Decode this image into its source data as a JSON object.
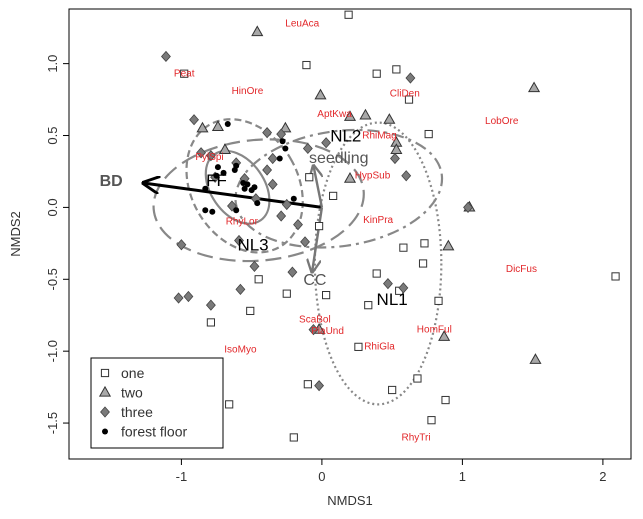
{
  "chart_data": {
    "type": "scatter",
    "xlabel": "NMDS1",
    "ylabel": "NMDS2",
    "xlim": [
      -1.8,
      2.2
    ],
    "ylim": [
      -1.75,
      1.38
    ],
    "x_ticks": [
      -1,
      0,
      1,
      2
    ],
    "x_tick_labels": [
      "-1",
      "0",
      "1",
      "2"
    ],
    "y_ticks": [
      -1.5,
      -1.0,
      -0.5,
      0.0,
      0.5,
      1.0
    ],
    "y_tick_labels": [
      "-1.5",
      "-1.0",
      "-0.5",
      "0.0",
      "0.5",
      "1.0"
    ],
    "grid": false,
    "legend": {
      "placement": "bottom-left",
      "entries": [
        {
          "label": "one",
          "marker": "square-open"
        },
        {
          "label": "two",
          "marker": "triangle-grey"
        },
        {
          "label": "three",
          "marker": "diamond-grey"
        },
        {
          "label": "forest floor",
          "marker": "circle-black"
        }
      ]
    },
    "series": [
      {
        "name": "one",
        "marker": "square-open",
        "points": [
          [
            0.19,
            1.34
          ],
          [
            -0.98,
            0.93
          ],
          [
            -0.11,
            0.99
          ],
          [
            0.53,
            0.96
          ],
          [
            0.39,
            0.93
          ],
          [
            0.62,
            0.75
          ],
          [
            -0.09,
            0.21
          ],
          [
            -0.02,
            -0.13
          ],
          [
            0.03,
            -0.61
          ],
          [
            0.55,
            -0.58
          ],
          [
            0.39,
            -0.46
          ],
          [
            0.33,
            -0.68
          ],
          [
            0.73,
            -0.25
          ],
          [
            0.58,
            -0.28
          ],
          [
            0.72,
            -0.39
          ],
          [
            0.26,
            -0.97
          ],
          [
            0.83,
            -0.65
          ],
          [
            0.5,
            -1.27
          ],
          [
            0.78,
            -1.48
          ],
          [
            0.68,
            -1.19
          ],
          [
            0.88,
            -1.34
          ],
          [
            -0.51,
            -0.72
          ],
          [
            -0.79,
            -0.8
          ],
          [
            -0.66,
            -1.37
          ],
          [
            -0.2,
            -1.6
          ],
          [
            -0.1,
            -1.23
          ],
          [
            -0.45,
            -0.5
          ],
          [
            -0.25,
            -0.6
          ],
          [
            2.09,
            -0.48
          ],
          [
            0.76,
            0.51
          ],
          [
            0.08,
            0.08
          ]
        ]
      },
      {
        "name": "two",
        "marker": "triangle-grey",
        "points": [
          [
            -0.46,
            1.22
          ],
          [
            -0.01,
            0.78
          ],
          [
            0.31,
            0.64
          ],
          [
            0.48,
            0.61
          ],
          [
            0.53,
            0.45
          ],
          [
            0.53,
            0.4
          ],
          [
            -0.74,
            0.56
          ],
          [
            -0.85,
            0.55
          ],
          [
            -0.26,
            0.55
          ],
          [
            1.51,
            0.83
          ],
          [
            0.2,
            0.2
          ],
          [
            0.9,
            -0.27
          ],
          [
            0.87,
            -0.9
          ],
          [
            1.52,
            -1.06
          ],
          [
            -0.02,
            -0.85
          ],
          [
            0.2,
            0.63
          ],
          [
            1.05,
            0.0
          ],
          [
            -0.69,
            0.4
          ]
        ]
      },
      {
        "name": "three",
        "marker": "diamond-grey",
        "points": [
          [
            -1.11,
            1.05
          ],
          [
            -0.91,
            0.61
          ],
          [
            -0.86,
            0.38
          ],
          [
            -0.79,
            0.36
          ],
          [
            -0.61,
            0.31
          ],
          [
            -0.39,
            0.52
          ],
          [
            -0.29,
            0.51
          ],
          [
            -0.1,
            0.41
          ],
          [
            0.03,
            0.45
          ],
          [
            0.63,
            0.9
          ],
          [
            0.52,
            0.34
          ],
          [
            0.6,
            0.22
          ],
          [
            -0.39,
            0.26
          ],
          [
            -0.55,
            0.2
          ],
          [
            -0.35,
            0.16
          ],
          [
            -0.25,
            0.02
          ],
          [
            -0.17,
            -0.12
          ],
          [
            -0.12,
            -0.24
          ],
          [
            -0.35,
            0.34
          ],
          [
            -0.47,
            0.06
          ],
          [
            -0.64,
            0.01
          ],
          [
            -0.59,
            -0.23
          ],
          [
            -0.76,
            0.21
          ],
          [
            -0.48,
            -0.41
          ],
          [
            -0.95,
            -0.62
          ],
          [
            -1.0,
            -0.26
          ],
          [
            -0.29,
            -0.06
          ],
          [
            -1.02,
            -0.63
          ],
          [
            -0.79,
            -0.68
          ],
          [
            -0.58,
            -0.57
          ],
          [
            -0.21,
            -0.45
          ],
          [
            0.47,
            -0.53
          ],
          [
            0.58,
            -0.56
          ],
          [
            1.04,
            0.0
          ],
          [
            -0.02,
            -1.24
          ],
          [
            -0.06,
            -0.85
          ]
        ]
      },
      {
        "name": "forest floor",
        "marker": "circle-black",
        "points": [
          [
            -0.75,
            0.22
          ],
          [
            -0.7,
            0.24
          ],
          [
            -0.62,
            0.26
          ],
          [
            -0.56,
            0.17
          ],
          [
            -0.55,
            0.13
          ],
          [
            -0.53,
            0.16
          ],
          [
            -0.48,
            0.14
          ],
          [
            -0.67,
            0.58
          ],
          [
            -0.83,
            -0.02
          ],
          [
            -0.78,
            -0.03
          ],
          [
            -0.61,
            -0.02
          ],
          [
            -0.26,
            0.41
          ],
          [
            -0.3,
            0.34
          ],
          [
            -0.2,
            0.06
          ],
          [
            -0.83,
            0.13
          ],
          [
            -0.61,
            0.29
          ],
          [
            -0.5,
            0.12
          ],
          [
            -0.28,
            0.46
          ],
          [
            -0.74,
            0.28
          ],
          [
            -0.46,
            0.03
          ]
        ]
      }
    ],
    "species_labels": [
      {
        "text": "LeuAca",
        "x": -0.14,
        "y": 1.26
      },
      {
        "text": "Peat",
        "x": -0.98,
        "y": 0.91
      },
      {
        "text": "HinOre",
        "x": -0.53,
        "y": 0.79
      },
      {
        "text": "CliDen",
        "x": 0.59,
        "y": 0.77
      },
      {
        "text": "LobOre",
        "x": 1.28,
        "y": 0.58
      },
      {
        "text": "AptKwa",
        "x": 0.09,
        "y": 0.63
      },
      {
        "text": "RhiMag",
        "x": 0.41,
        "y": 0.48
      },
      {
        "text": "PylSpi",
        "x": -0.8,
        "y": 0.33
      },
      {
        "text": "HypSub",
        "x": 0.36,
        "y": 0.2
      },
      {
        "text": "RhyLor",
        "x": -0.57,
        "y": -0.12
      },
      {
        "text": "KinPra",
        "x": 0.4,
        "y": -0.11
      },
      {
        "text": "DicFus",
        "x": 1.42,
        "y": -0.45
      },
      {
        "text": "ScaBol",
        "x": -0.05,
        "y": -0.8
      },
      {
        "text": "PlaUnd",
        "x": 0.04,
        "y": -0.88
      },
      {
        "text": "HomFul",
        "x": 0.8,
        "y": -0.87
      },
      {
        "text": "RhiGla",
        "x": 0.41,
        "y": -0.99
      },
      {
        "text": "IsoMyo",
        "x": -0.58,
        "y": -1.01
      },
      {
        "text": "RhyTri",
        "x": 0.67,
        "y": -1.62
      }
    ],
    "group_labels": [
      {
        "text": "NL2",
        "x": 0.17,
        "y": 0.46
      },
      {
        "text": "FF",
        "x": -0.75,
        "y": 0.15
      },
      {
        "text": "NL3",
        "x": -0.49,
        "y": -0.3
      },
      {
        "text": "NL1",
        "x": 0.5,
        "y": -0.68
      }
    ],
    "vectors": [
      {
        "label": "BD",
        "x_end": -1.27,
        "y_end": 0.17,
        "label_x": -1.5,
        "label_y": 0.15,
        "color": "#000000"
      },
      {
        "label": "seedling",
        "x_end": -0.06,
        "y_end": 0.29,
        "label_x": 0.12,
        "label_y": 0.31,
        "color": "#777777"
      },
      {
        "label": "CC",
        "x_end": -0.07,
        "y_end": -0.45,
        "label_x": -0.05,
        "label_y": -0.54,
        "color": "#777777"
      }
    ],
    "ellipses": [
      {
        "group": "FF",
        "cx": -0.6,
        "cy": 0.14,
        "rx": 0.19,
        "ry": 0.28,
        "angle_deg": -35,
        "style": "solid"
      },
      {
        "group": "FF",
        "cx": -0.55,
        "cy": 0.15,
        "rx": 0.38,
        "ry": 0.49,
        "angle_deg": -30,
        "style": "dash"
      },
      {
        "group": "NL3",
        "cx": -0.45,
        "cy": 0.05,
        "rx": 0.75,
        "ry": 0.42,
        "angle_deg": -5,
        "style": "longdash"
      },
      {
        "group": "NL2",
        "cx": 0.12,
        "cy": 0.13,
        "rx": 0.74,
        "ry": 0.4,
        "angle_deg": -8,
        "style": "dashdot"
      },
      {
        "group": "NL1",
        "cx": 0.4,
        "cy": -0.39,
        "rx": 0.45,
        "ry": 0.98,
        "angle_deg": 0,
        "style": "dotted"
      }
    ],
    "colors": {
      "species_text": "#e2272a",
      "marker_grey": "#a8a8a8",
      "diamond_grey": "#7a7a7a",
      "ellipse": "#888888",
      "vector_bd": "#000000",
      "vector_other": "#777777"
    }
  }
}
